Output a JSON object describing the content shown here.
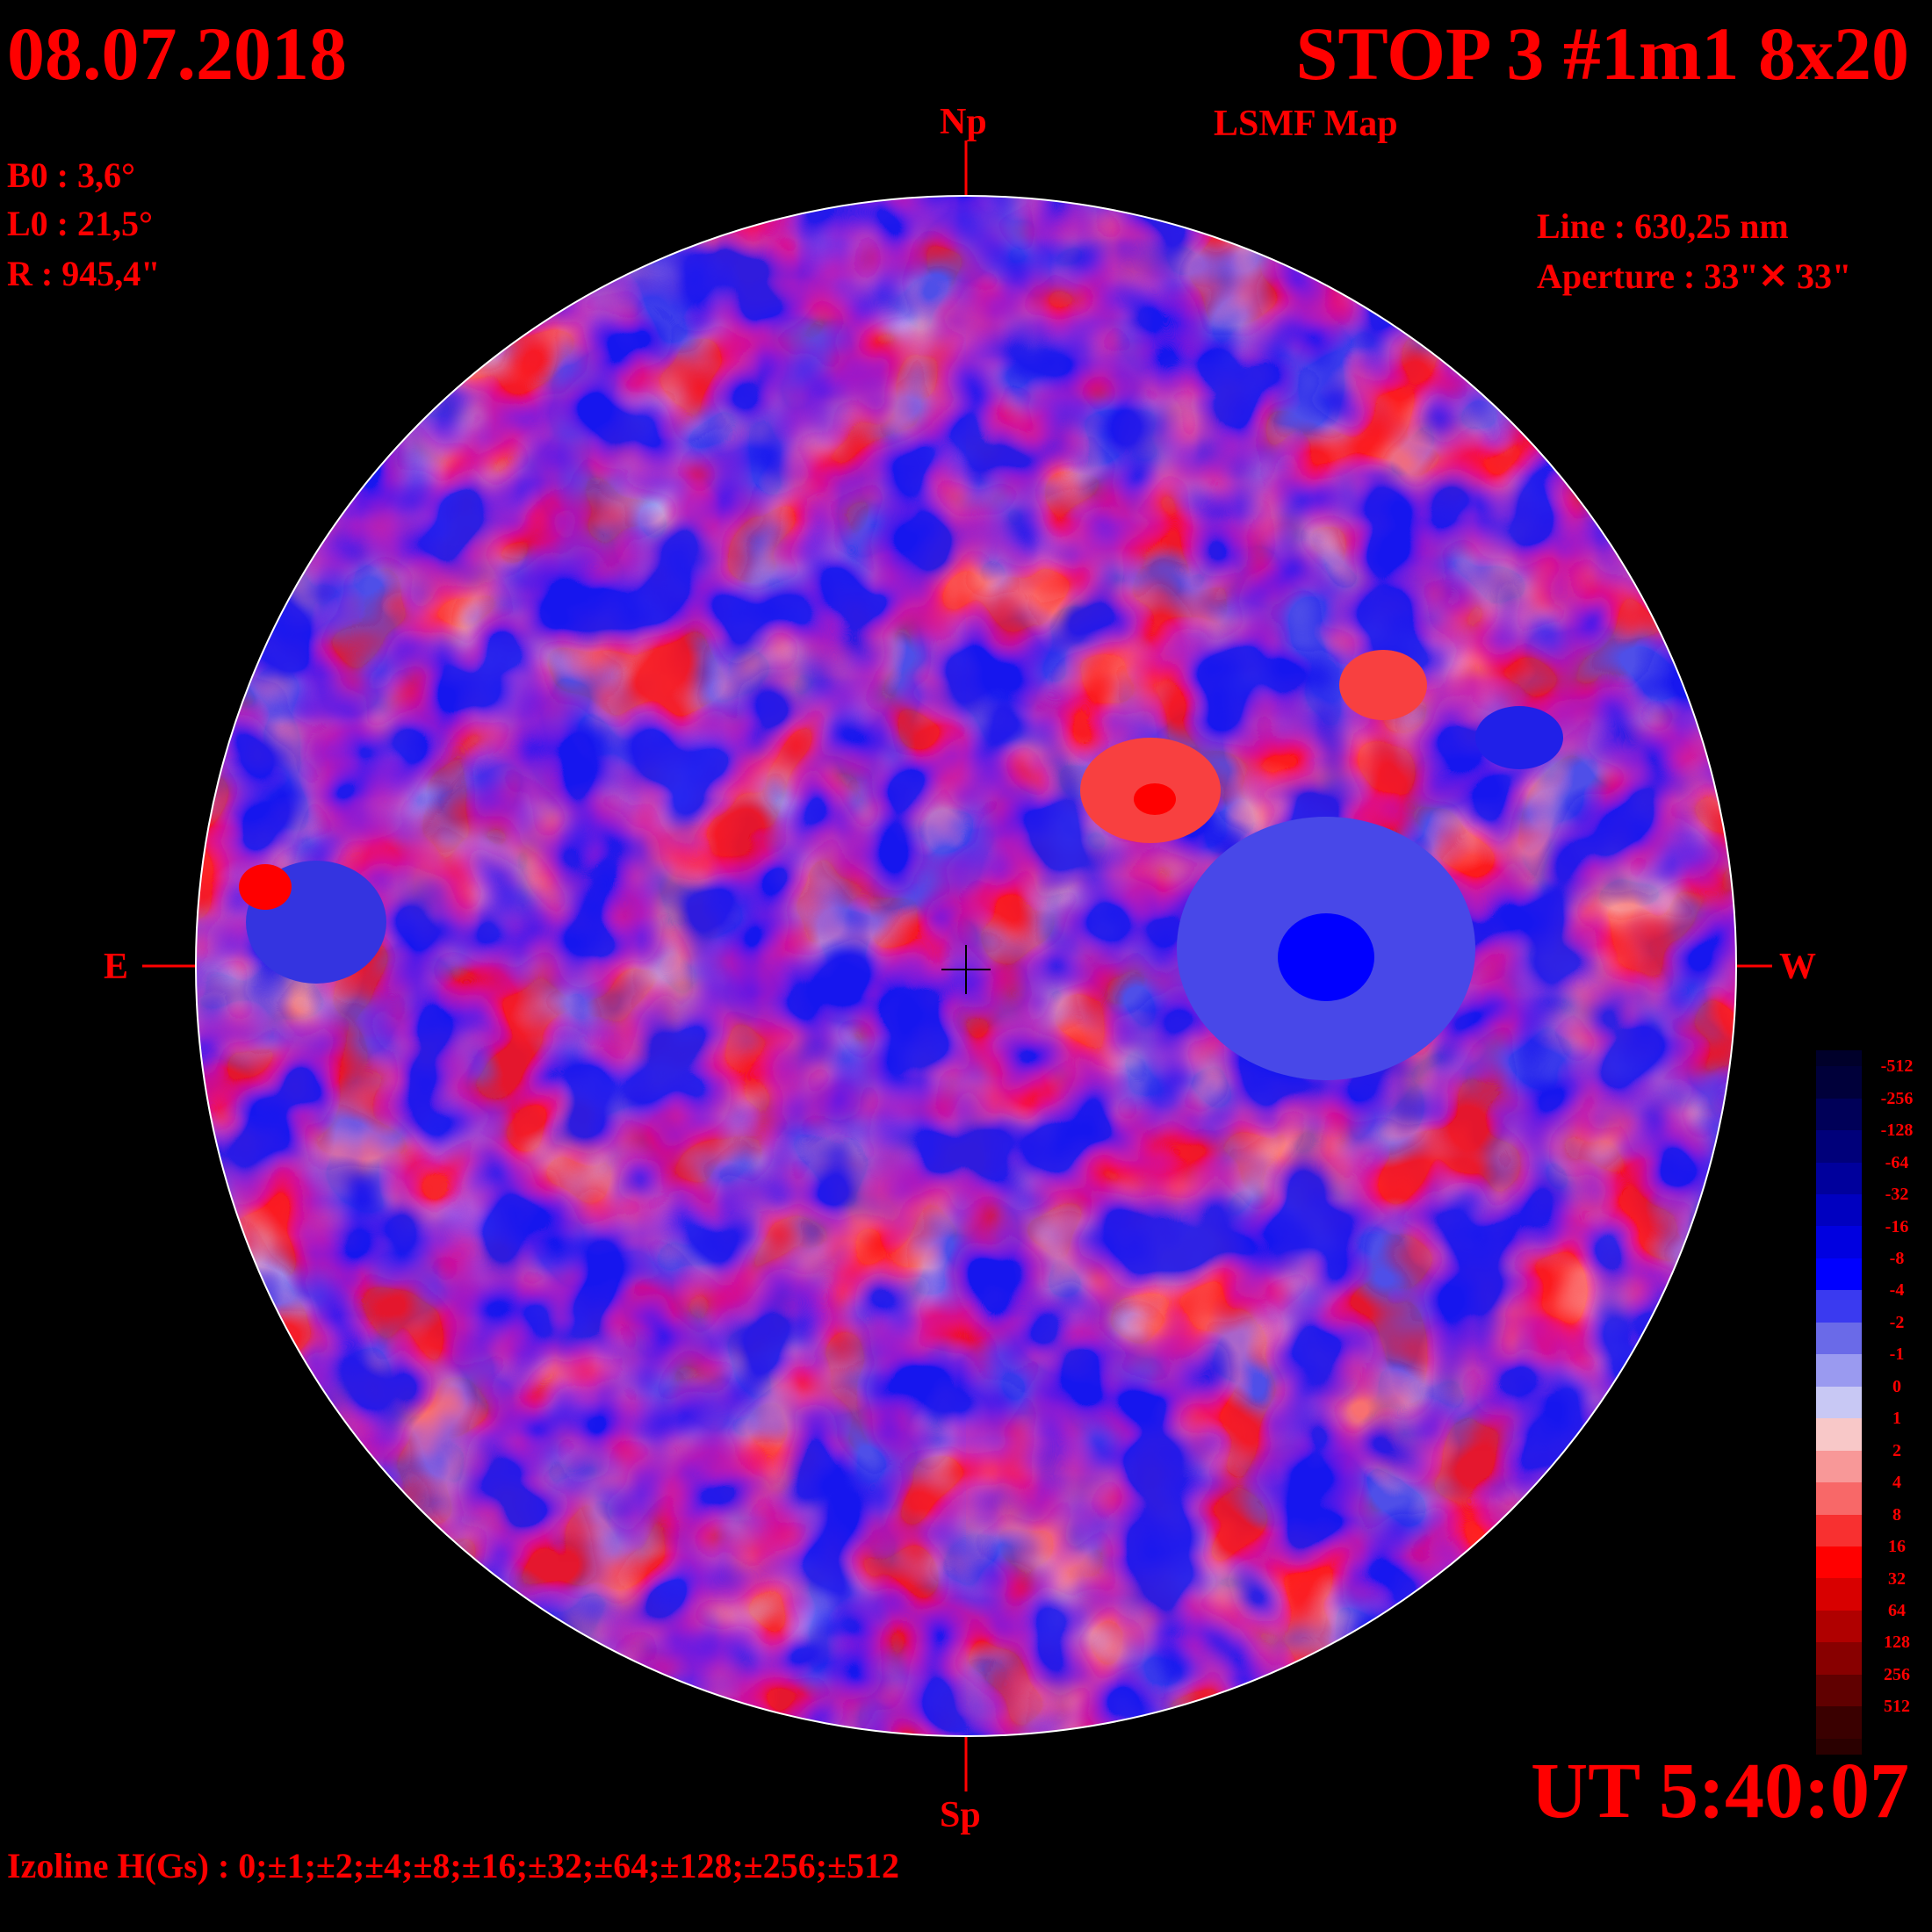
{
  "header": {
    "date": "08.07.2018",
    "title": "STOP 3 #1m1 8x20",
    "subtitle": "LSMF  Map"
  },
  "parameters": {
    "b0": "B0 : 3,6°",
    "l0": "L0 : 21,5°",
    "radius": "R  : 945,4\""
  },
  "instrument": {
    "line": "Line :  630,25 nm",
    "aperture": "Aperture : 33\"✕ 33\""
  },
  "directions": {
    "north": "Np",
    "south": "Sp",
    "east": "E",
    "west": "W"
  },
  "time": "UT 5:40:07",
  "isolines": "Izoline H(Gs) : 0;±1;±2;±4;±8;±16;±32;±64;±128;±256;±512",
  "colorbar": {
    "levels": [
      {
        "label": "-512",
        "color": "#00003a"
      },
      {
        "label": "-256",
        "color": "#000058"
      },
      {
        "label": "-128",
        "color": "#00007a"
      },
      {
        "label": "-64",
        "color": "#00009c"
      },
      {
        "label": "-32",
        "color": "#0000c0"
      },
      {
        "label": "-16",
        "color": "#0000e0"
      },
      {
        "label": "-8",
        "color": "#0000ff"
      },
      {
        "label": "-4",
        "color": "#3a3af0"
      },
      {
        "label": "-2",
        "color": "#6a6ae8"
      },
      {
        "label": "-1",
        "color": "#9a9af0"
      },
      {
        "label": "0",
        "color": "#c8c8f4"
      },
      {
        "label": "1",
        "color": "#f8c8c8"
      },
      {
        "label": "2",
        "color": "#f89898"
      },
      {
        "label": "4",
        "color": "#f86868"
      },
      {
        "label": "8",
        "color": "#f83030"
      },
      {
        "label": "16",
        "color": "#ff0000"
      },
      {
        "label": "32",
        "color": "#d80000"
      },
      {
        "label": "64",
        "color": "#b00000"
      },
      {
        "label": "128",
        "color": "#880000"
      },
      {
        "label": "256",
        "color": "#600000"
      },
      {
        "label": "512",
        "color": "#3a0000"
      }
    ]
  },
  "map_palette": {
    "neg_strong": "#0000ff",
    "neg_mid": "#5c5ce8",
    "neg_light": "#9a9af0",
    "neutral_blue": "#c8c8f4",
    "neutral_red": "#f8c8c8",
    "pos_light": "#f89898",
    "pos_mid": "#f86060",
    "pos_strong": "#ff0000",
    "isoline": "#ffffff"
  }
}
